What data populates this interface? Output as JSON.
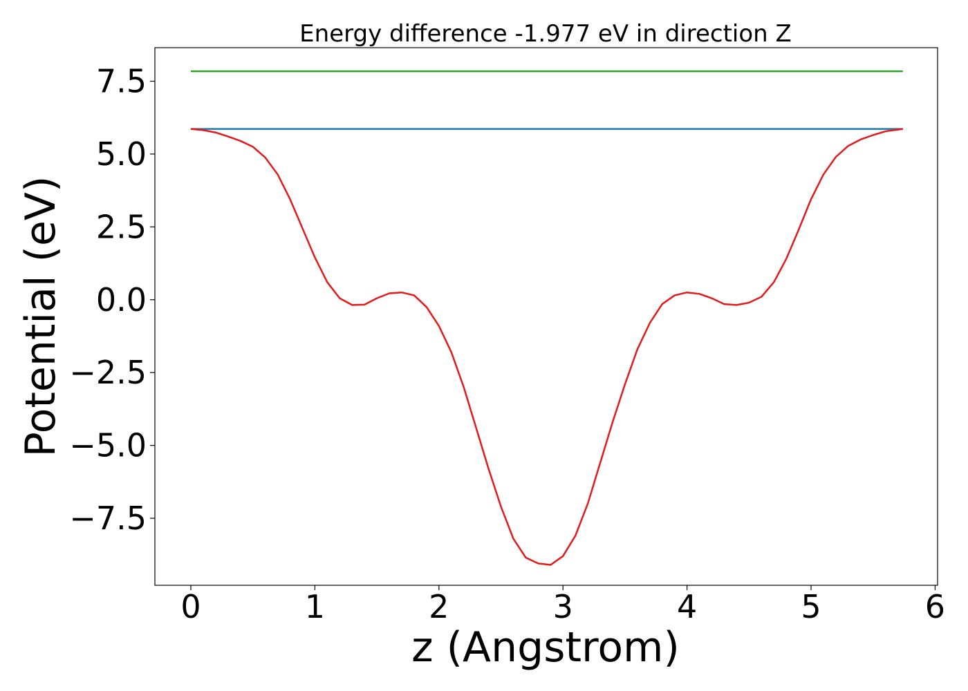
{
  "chart_data": {
    "type": "line",
    "title": "Energy difference -1.977 eV in direction Z",
    "xlabel": "z (Angstrom)",
    "ylabel": "Potential (eV)",
    "xlim": [
      -0.29,
      6.02
    ],
    "ylim": [
      -9.8,
      8.65
    ],
    "xticks": [
      0,
      1,
      2,
      3,
      4,
      5,
      6
    ],
    "xtick_labels": [
      "0",
      "1",
      "2",
      "3",
      "4",
      "5",
      "6"
    ],
    "yticks": [
      7.5,
      5.0,
      2.5,
      0.0,
      -2.5,
      -5.0,
      -7.5
    ],
    "ytick_labels": [
      "7.5",
      "5.0",
      "2.5",
      "0.0",
      "−2.5",
      "−5.0",
      "−7.5"
    ],
    "grid": false,
    "legend": false,
    "series": [
      {
        "color": "#2ca02c",
        "x": [
          0,
          5.74
        ],
        "y": [
          7.84,
          7.84
        ]
      },
      {
        "color": "#1f77b4",
        "x": [
          0,
          5.74
        ],
        "y": [
          5.86,
          5.86
        ]
      },
      {
        "color": "#e31a1c",
        "x": [
          0.0,
          0.1,
          0.2,
          0.3,
          0.4,
          0.5,
          0.6,
          0.7,
          0.8,
          0.9,
          1.0,
          1.1,
          1.2,
          1.3,
          1.4,
          1.5,
          1.6,
          1.7,
          1.8,
          1.9,
          2.0,
          2.1,
          2.2,
          2.3,
          2.4,
          2.5,
          2.6,
          2.7,
          2.8,
          2.9,
          3.0,
          3.1,
          3.2,
          3.3,
          3.4,
          3.5,
          3.6,
          3.7,
          3.8,
          3.9,
          4.0,
          4.1,
          4.2,
          4.3,
          4.4,
          4.5,
          4.6,
          4.7,
          4.8,
          4.9,
          5.0,
          5.1,
          5.2,
          5.3,
          5.4,
          5.5,
          5.6,
          5.74
        ],
        "y": [
          5.86,
          5.82,
          5.74,
          5.6,
          5.45,
          5.25,
          4.88,
          4.3,
          3.45,
          2.45,
          1.45,
          0.6,
          0.05,
          -0.18,
          -0.17,
          0.05,
          0.22,
          0.25,
          0.15,
          -0.25,
          -0.9,
          -1.8,
          -3.0,
          -4.4,
          -5.8,
          -7.1,
          -8.2,
          -8.85,
          -9.05,
          -9.1,
          -8.8,
          -8.1,
          -7.0,
          -5.6,
          -4.2,
          -2.9,
          -1.7,
          -0.8,
          -0.15,
          0.15,
          0.25,
          0.2,
          0.05,
          -0.15,
          -0.18,
          -0.1,
          0.1,
          0.6,
          1.4,
          2.4,
          3.45,
          4.3,
          4.9,
          5.28,
          5.5,
          5.65,
          5.78,
          5.86
        ]
      }
    ]
  }
}
